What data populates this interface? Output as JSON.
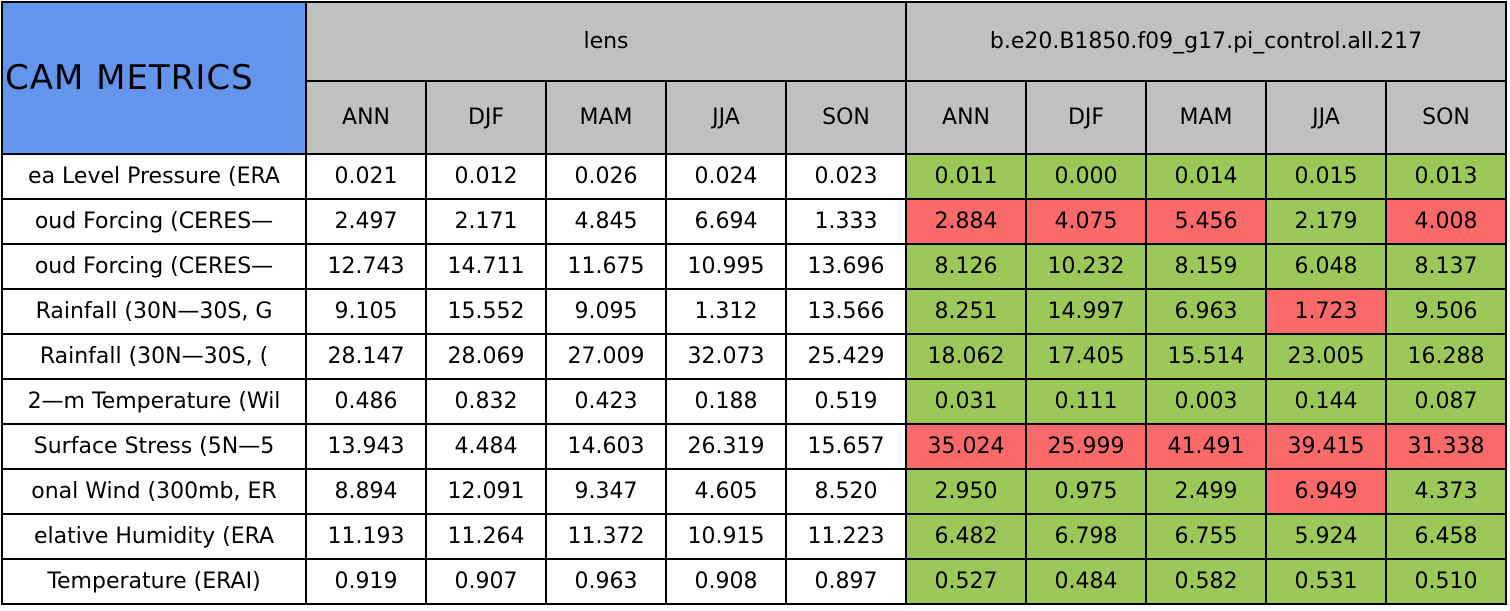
{
  "header": {
    "title": "CAM METRICS",
    "groups": [
      "lens",
      "b.e20.B1850.f09_g17.pi_control.all.217"
    ],
    "seasons": [
      "ANN",
      "DJF",
      "MAM",
      "JJA",
      "SON"
    ]
  },
  "colors": {
    "title_bg": "#6495ed",
    "header_bg": "#c0c0c0",
    "good": "#9cc85a",
    "bad": "#fa6a6a"
  },
  "table": {
    "rows": [
      {
        "label": "ea Level Pressure (ERA",
        "lens": [
          "0.021",
          "0.012",
          "0.026",
          "0.024",
          "0.023"
        ],
        "control": [
          "0.011",
          "0.000",
          "0.014",
          "0.015",
          "0.013"
        ],
        "control_status": [
          "good",
          "good",
          "good",
          "good",
          "good"
        ]
      },
      {
        "label": "oud Forcing (CERES—",
        "lens": [
          "2.497",
          "2.171",
          "4.845",
          "6.694",
          "1.333"
        ],
        "control": [
          "2.884",
          "4.075",
          "5.456",
          "2.179",
          "4.008"
        ],
        "control_status": [
          "bad",
          "bad",
          "bad",
          "good",
          "bad"
        ]
      },
      {
        "label": "oud Forcing (CERES—",
        "lens": [
          "12.743",
          "14.711",
          "11.675",
          "10.995",
          "13.696"
        ],
        "control": [
          "8.126",
          "10.232",
          "8.159",
          "6.048",
          "8.137"
        ],
        "control_status": [
          "good",
          "good",
          "good",
          "good",
          "good"
        ]
      },
      {
        "label": "Rainfall (30N—30S, G",
        "lens": [
          "9.105",
          "15.552",
          "9.095",
          "1.312",
          "13.566"
        ],
        "control": [
          "8.251",
          "14.997",
          "6.963",
          "1.723",
          "9.506"
        ],
        "control_status": [
          "good",
          "good",
          "good",
          "bad",
          "good"
        ]
      },
      {
        "label": "Rainfall (30N—30S, (",
        "lens": [
          "28.147",
          "28.069",
          "27.009",
          "32.073",
          "25.429"
        ],
        "control": [
          "18.062",
          "17.405",
          "15.514",
          "23.005",
          "16.288"
        ],
        "control_status": [
          "good",
          "good",
          "good",
          "good",
          "good"
        ]
      },
      {
        "label": "2—m Temperature (Wil",
        "lens": [
          "0.486",
          "0.832",
          "0.423",
          "0.188",
          "0.519"
        ],
        "control": [
          "0.031",
          "0.111",
          "0.003",
          "0.144",
          "0.087"
        ],
        "control_status": [
          "good",
          "good",
          "good",
          "good",
          "good"
        ]
      },
      {
        "label": "Surface Stress (5N—5",
        "lens": [
          "13.943",
          "4.484",
          "14.603",
          "26.319",
          "15.657"
        ],
        "control": [
          "35.024",
          "25.999",
          "41.491",
          "39.415",
          "31.338"
        ],
        "control_status": [
          "bad",
          "bad",
          "bad",
          "bad",
          "bad"
        ]
      },
      {
        "label": "onal Wind (300mb, ER",
        "lens": [
          "8.894",
          "12.091",
          "9.347",
          "4.605",
          "8.520"
        ],
        "control": [
          "2.950",
          "0.975",
          "2.499",
          "6.949",
          "4.373"
        ],
        "control_status": [
          "good",
          "good",
          "good",
          "bad",
          "good"
        ]
      },
      {
        "label": "elative Humidity (ERA",
        "lens": [
          "11.193",
          "11.264",
          "11.372",
          "10.915",
          "11.223"
        ],
        "control": [
          "6.482",
          "6.798",
          "6.755",
          "5.924",
          "6.458"
        ],
        "control_status": [
          "good",
          "good",
          "good",
          "good",
          "good"
        ]
      },
      {
        "label": "Temperature (ERAI)",
        "lens": [
          "0.919",
          "0.907",
          "0.963",
          "0.908",
          "0.897"
        ],
        "control": [
          "0.527",
          "0.484",
          "0.582",
          "0.531",
          "0.510"
        ],
        "control_status": [
          "good",
          "good",
          "good",
          "good",
          "good"
        ]
      }
    ]
  }
}
